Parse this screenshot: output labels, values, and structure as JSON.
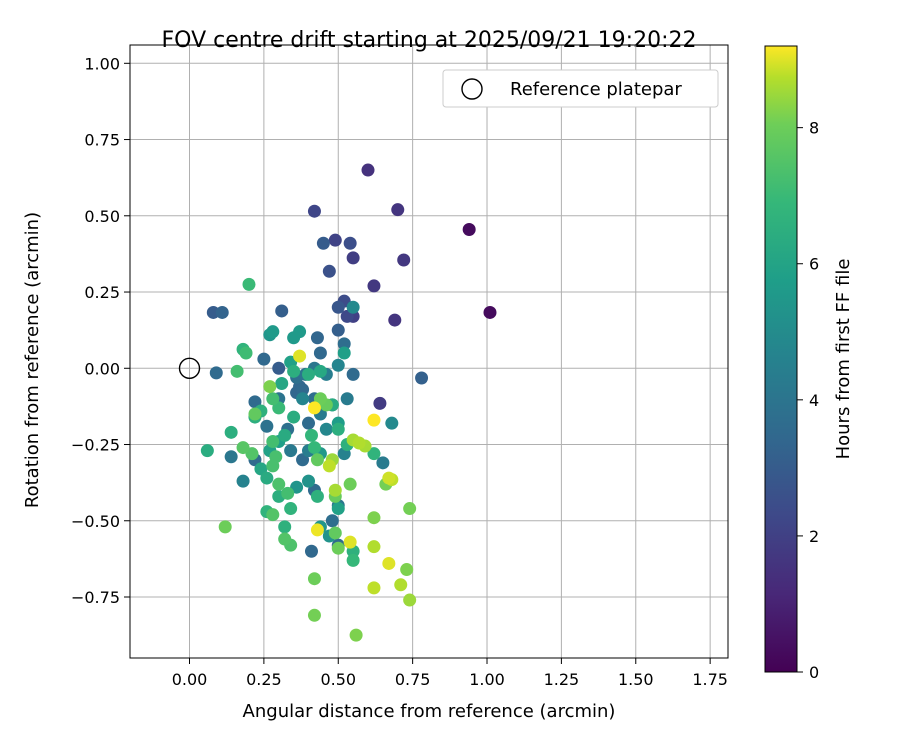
{
  "chart_data": {
    "type": "scatter",
    "title": "FOV centre drift starting at 2025/09/21 19:20:22",
    "xlabel": "Angular distance from reference (arcmin)",
    "ylabel": "Rotation from reference (arcmin)",
    "xlim": [
      -0.2,
      1.81
    ],
    "ylim": [
      -0.95,
      1.06
    ],
    "xticks": [
      0.0,
      0.25,
      0.5,
      0.75,
      1.0,
      1.25,
      1.5,
      1.75
    ],
    "xtick_labels": [
      "0.00",
      "0.25",
      "0.50",
      "0.75",
      "1.00",
      "1.25",
      "1.50",
      "1.75"
    ],
    "yticks": [
      -0.75,
      -0.5,
      -0.25,
      0.0,
      0.25,
      0.5,
      0.75,
      1.0
    ],
    "ytick_labels": [
      "−0.75",
      "−0.50",
      "−0.25",
      "0.00",
      "0.25",
      "0.50",
      "0.75",
      "1.00"
    ],
    "grid": true,
    "legend": {
      "position": "top-right",
      "entries": [
        "Reference platepar"
      ]
    },
    "reference_point": {
      "x": 0.0,
      "y": 0.0,
      "label": "Reference platepar"
    },
    "colorbar": {
      "label": "Hours from first FF file",
      "cmap": "viridis",
      "range": [
        0,
        9.2
      ],
      "ticks": [
        0,
        2,
        4,
        6,
        8
      ],
      "tick_labels": [
        "0",
        "2",
        "4",
        "6",
        "8"
      ]
    },
    "points": [
      [
        0.94,
        0.455,
        0.3
      ],
      [
        1.01,
        0.183,
        0.3
      ],
      [
        0.6,
        0.65,
        1.5
      ],
      [
        0.7,
        0.52,
        1.6
      ],
      [
        0.72,
        0.355,
        1.7
      ],
      [
        0.62,
        0.27,
        1.7
      ],
      [
        0.69,
        0.158,
        1.6
      ],
      [
        0.42,
        0.515,
        2.2
      ],
      [
        0.49,
        0.42,
        2.1
      ],
      [
        0.54,
        0.41,
        2.5
      ],
      [
        0.45,
        0.41,
        3.0
      ],
      [
        0.55,
        0.362,
        1.9
      ],
      [
        0.47,
        0.318,
        2.6
      ],
      [
        0.52,
        0.22,
        2.4
      ],
      [
        0.53,
        0.17,
        2.3
      ],
      [
        0.55,
        0.17,
        2.0
      ],
      [
        0.5,
        0.2,
        2.8
      ],
      [
        0.64,
        -0.115,
        1.8
      ],
      [
        0.78,
        -0.032,
        3.2
      ],
      [
        0.08,
        0.183,
        3.0
      ],
      [
        0.11,
        0.183,
        3.3
      ],
      [
        0.31,
        0.188,
        3.1
      ],
      [
        0.43,
        0.1,
        3.4
      ],
      [
        0.5,
        0.125,
        3.1
      ],
      [
        0.52,
        0.08,
        3.7
      ],
      [
        0.44,
        0.05,
        3.5
      ],
      [
        0.3,
        0.0,
        3.0
      ],
      [
        0.25,
        0.03,
        3.5
      ],
      [
        0.09,
        -0.015,
        3.6
      ],
      [
        0.18,
        -0.37,
        4.6
      ],
      [
        0.14,
        -0.29,
        4.1
      ],
      [
        0.22,
        -0.11,
        3.6
      ],
      [
        0.22,
        -0.3,
        3.6
      ],
      [
        0.26,
        -0.19,
        3.9
      ],
      [
        0.3,
        -0.1,
        4.0
      ],
      [
        0.33,
        -0.2,
        3.8
      ],
      [
        0.36,
        -0.08,
        3.4
      ],
      [
        0.38,
        -0.07,
        3.5
      ],
      [
        0.4,
        -0.18,
        3.6
      ],
      [
        0.42,
        -0.1,
        3.7
      ],
      [
        0.44,
        -0.15,
        4.3
      ],
      [
        0.46,
        -0.2,
        4.8
      ],
      [
        0.34,
        -0.27,
        4.2
      ],
      [
        0.38,
        -0.3,
        3.6
      ],
      [
        0.4,
        -0.27,
        4.4
      ],
      [
        0.42,
        -0.4,
        3.6
      ],
      [
        0.48,
        -0.5,
        3.7
      ],
      [
        0.5,
        -0.45,
        4.1
      ],
      [
        0.5,
        -0.58,
        3.6
      ],
      [
        0.41,
        -0.6,
        3.5
      ],
      [
        0.36,
        -0.03,
        3.8
      ],
      [
        0.37,
        -0.06,
        3.4
      ],
      [
        0.39,
        -0.02,
        4.0
      ],
      [
        0.42,
        0.0,
        4.1
      ],
      [
        0.46,
        -0.02,
        4.4
      ],
      [
        0.48,
        -0.12,
        4.8
      ],
      [
        0.53,
        -0.1,
        4.3
      ],
      [
        0.55,
        -0.02,
        3.6
      ],
      [
        0.5,
        0.01,
        4.7
      ],
      [
        0.55,
        0.2,
        4.9
      ],
      [
        0.52,
        -0.28,
        4.6
      ],
      [
        0.65,
        -0.31,
        4.3
      ],
      [
        0.68,
        -0.18,
        4.9
      ],
      [
        0.38,
        -0.1,
        4.7
      ],
      [
        0.44,
        -0.28,
        5.5
      ],
      [
        0.4,
        -0.37,
        5.3
      ],
      [
        0.36,
        -0.39,
        5.4
      ],
      [
        0.44,
        -0.52,
        5.4
      ],
      [
        0.47,
        -0.55,
        5.3
      ],
      [
        0.27,
        0.11,
        5.4
      ],
      [
        0.28,
        0.12,
        5.6
      ],
      [
        0.35,
        0.1,
        5.6
      ],
      [
        0.37,
        0.12,
        5.6
      ],
      [
        0.34,
        0.02,
        5.9
      ],
      [
        0.52,
        0.05,
        5.8
      ],
      [
        0.5,
        -0.18,
        5.7
      ],
      [
        0.5,
        -0.46,
        5.9
      ],
      [
        0.3,
        -0.24,
        5.8
      ],
      [
        0.31,
        -0.05,
        6.1
      ],
      [
        0.35,
        -0.01,
        6.5
      ],
      [
        0.4,
        -0.02,
        6.4
      ],
      [
        0.44,
        -0.01,
        6.2
      ],
      [
        0.48,
        -0.12,
        6.3
      ],
      [
        0.35,
        -0.16,
        6.4
      ],
      [
        0.32,
        -0.22,
        6.3
      ],
      [
        0.27,
        -0.27,
        5.9
      ],
      [
        0.24,
        -0.33,
        6.1
      ],
      [
        0.26,
        -0.36,
        6.3
      ],
      [
        0.22,
        -0.16,
        6.5
      ],
      [
        0.24,
        -0.14,
        6.6
      ],
      [
        0.14,
        -0.21,
        6.5
      ],
      [
        0.06,
        -0.27,
        6.4
      ],
      [
        0.3,
        -0.42,
        6.5
      ],
      [
        0.26,
        -0.47,
        6.7
      ],
      [
        0.32,
        -0.52,
        6.6
      ],
      [
        0.34,
        -0.46,
        6.7
      ],
      [
        0.43,
        -0.42,
        6.6
      ],
      [
        0.5,
        -0.2,
        6.5
      ],
      [
        0.53,
        -0.25,
        6.6
      ],
      [
        0.62,
        -0.28,
        6.7
      ],
      [
        0.55,
        -0.6,
        6.6
      ],
      [
        0.55,
        -0.63,
        6.9
      ],
      [
        0.41,
        -0.22,
        6.8
      ],
      [
        0.42,
        -0.26,
        6.9
      ],
      [
        0.18,
        0.062,
        6.7
      ],
      [
        0.2,
        0.275,
        7.0
      ],
      [
        0.16,
        -0.01,
        7.2
      ],
      [
        0.19,
        0.05,
        7.1
      ],
      [
        0.28,
        -0.1,
        7.2
      ],
      [
        0.3,
        -0.13,
        7.0
      ],
      [
        0.28,
        -0.24,
        7.2
      ],
      [
        0.29,
        -0.29,
        7.3
      ],
      [
        0.3,
        -0.38,
        7.4
      ],
      [
        0.33,
        -0.41,
        7.2
      ],
      [
        0.34,
        -0.58,
        7.4
      ],
      [
        0.28,
        -0.48,
        7.5
      ],
      [
        0.28,
        -0.32,
        7.3
      ],
      [
        0.21,
        -0.28,
        7.5
      ],
      [
        0.18,
        -0.26,
        7.6
      ],
      [
        0.22,
        -0.15,
        7.8
      ],
      [
        0.46,
        -0.12,
        7.9
      ],
      [
        0.43,
        -0.3,
        7.8
      ],
      [
        0.49,
        -0.42,
        7.9
      ],
      [
        0.49,
        -0.54,
        7.8
      ],
      [
        0.5,
        -0.59,
        8.0
      ],
      [
        0.42,
        -0.69,
        8.0
      ],
      [
        0.42,
        -0.81,
        8.1
      ],
      [
        0.56,
        -0.875,
        8.2
      ],
      [
        0.54,
        -0.38,
        8.0
      ],
      [
        0.48,
        -0.3,
        8.5
      ],
      [
        0.66,
        -0.38,
        8.1
      ],
      [
        0.62,
        -0.49,
        8.2
      ],
      [
        0.74,
        -0.46,
        8.1
      ],
      [
        0.73,
        -0.66,
        8.2
      ],
      [
        0.74,
        -0.76,
        8.5
      ],
      [
        0.71,
        -0.71,
        8.7
      ],
      [
        0.62,
        -0.72,
        8.8
      ],
      [
        0.67,
        -0.64,
        9.0
      ],
      [
        0.62,
        -0.585,
        8.7
      ],
      [
        0.54,
        -0.57,
        9.0
      ],
      [
        0.43,
        -0.53,
        9.1
      ],
      [
        0.47,
        -0.32,
        8.8
      ],
      [
        0.49,
        -0.4,
        8.6
      ],
      [
        0.55,
        -0.235,
        8.6
      ],
      [
        0.57,
        -0.245,
        8.7
      ],
      [
        0.59,
        -0.255,
        8.6
      ],
      [
        0.62,
        -0.17,
        9.2
      ],
      [
        0.68,
        -0.365,
        8.8
      ],
      [
        0.67,
        -0.36,
        8.9
      ],
      [
        0.42,
        -0.13,
        9.2
      ],
      [
        0.37,
        0.04,
        9.0
      ],
      [
        0.12,
        -0.52,
        8.0
      ],
      [
        0.32,
        -0.56,
        7.5
      ],
      [
        0.27,
        -0.06,
        8.2
      ],
      [
        0.44,
        -0.1,
        8.0
      ]
    ]
  }
}
